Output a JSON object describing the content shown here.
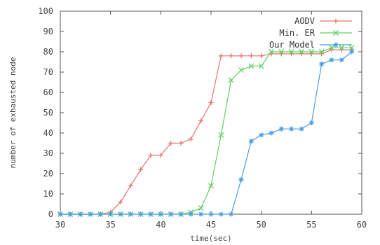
{
  "chart_data": {
    "type": "line",
    "title": "",
    "xlabel": "time(sec)",
    "ylabel": "number of exhausted node",
    "xlim": [
      30,
      60
    ],
    "ylim": [
      0,
      100
    ],
    "xticks": [
      30,
      35,
      40,
      45,
      50,
      55,
      60
    ],
    "yticks": [
      0,
      10,
      20,
      30,
      40,
      50,
      60,
      70,
      80,
      90,
      100
    ],
    "grid": false,
    "legend": "top-right",
    "series": [
      {
        "name": "AODV",
        "color": "#e8736f",
        "marker": "plus",
        "x": [
          30,
          31,
          32,
          33,
          34,
          35,
          36,
          37,
          38,
          39,
          40,
          41,
          42,
          43,
          44,
          45,
          46,
          47,
          48,
          49,
          50,
          51,
          52,
          53,
          54,
          55,
          56,
          57,
          58,
          59
        ],
        "y": [
          0,
          0,
          0,
          0,
          0,
          1,
          6,
          14,
          22,
          29,
          29,
          35,
          35,
          37,
          46,
          55,
          78,
          78,
          78,
          78,
          78,
          79,
          79,
          79,
          79,
          79,
          79,
          81,
          81,
          81
        ]
      },
      {
        "name": "Min. ER",
        "color": "#63cf63",
        "marker": "x",
        "x": [
          30,
          31,
          32,
          33,
          34,
          35,
          36,
          37,
          38,
          39,
          40,
          41,
          42,
          43,
          44,
          45,
          46,
          47,
          48,
          49,
          50,
          51,
          52,
          53,
          54,
          55,
          56,
          57,
          58,
          59
        ],
        "y": [
          0,
          0,
          0,
          0,
          0,
          0,
          0,
          0,
          0,
          0,
          0,
          0,
          0,
          1,
          3,
          14,
          39,
          66,
          71,
          73,
          73,
          80,
          80,
          80,
          80,
          80,
          80,
          82,
          82,
          82
        ]
      },
      {
        "name": "Our Model",
        "color": "#4a9ee4",
        "marker": "star",
        "x": [
          30,
          31,
          32,
          33,
          34,
          35,
          36,
          37,
          38,
          39,
          40,
          41,
          42,
          43,
          44,
          45,
          46,
          47,
          48,
          49,
          50,
          51,
          52,
          53,
          54,
          55,
          56,
          57,
          58,
          59
        ],
        "y": [
          0,
          0,
          0,
          0,
          0,
          0,
          0,
          0,
          0,
          0,
          0,
          0,
          0,
          0,
          0,
          0,
          0,
          0,
          17,
          36,
          39,
          40,
          42,
          42,
          42,
          45,
          74,
          76,
          76,
          80
        ]
      }
    ]
  }
}
